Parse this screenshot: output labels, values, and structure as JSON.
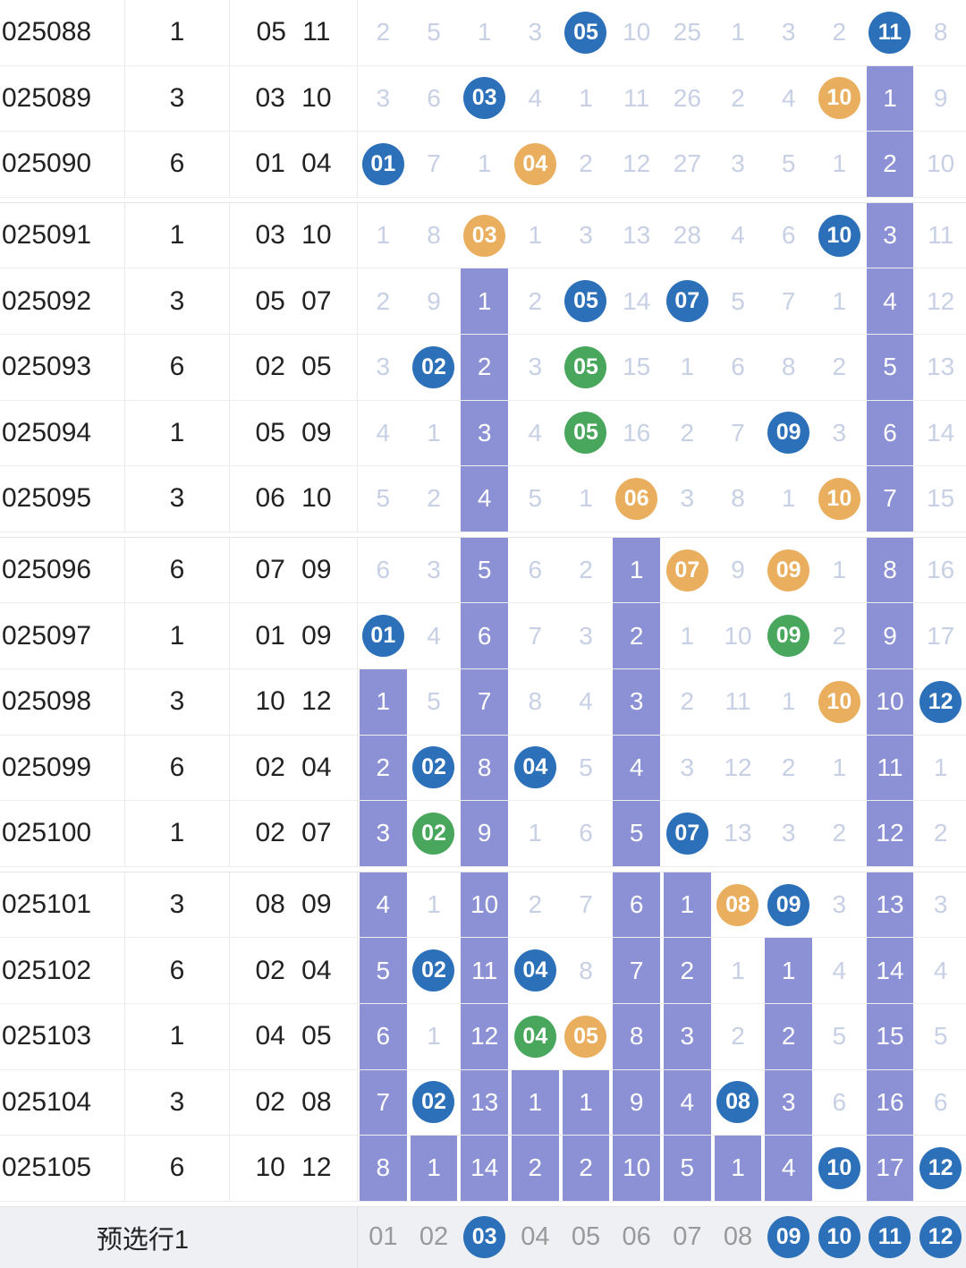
{
  "colors": {
    "blue": "#2b70b8",
    "orange": "#e9af5e",
    "green": "#48a75c",
    "purple": "#8b91d4",
    "plain": "#c7d0e4",
    "footer_text": "#999999",
    "footer_bg": "#eef0f4"
  },
  "footer": {
    "label": "预选行1",
    "cells": [
      {
        "v": "01",
        "t": "plain"
      },
      {
        "v": "02",
        "t": "plain"
      },
      {
        "v": "03",
        "t": "blue"
      },
      {
        "v": "04",
        "t": "plain"
      },
      {
        "v": "05",
        "t": "plain"
      },
      {
        "v": "06",
        "t": "plain"
      },
      {
        "v": "07",
        "t": "plain"
      },
      {
        "v": "08",
        "t": "plain"
      },
      {
        "v": "09",
        "t": "blue"
      },
      {
        "v": "10",
        "t": "blue"
      },
      {
        "v": "11",
        "t": "blue"
      },
      {
        "v": "12",
        "t": "blue"
      }
    ]
  },
  "rows": [
    {
      "period": "025088",
      "group": "1",
      "drawn": "05 11",
      "groupEnd": false,
      "cells": [
        {
          "v": "2",
          "t": "plain"
        },
        {
          "v": "5",
          "t": "plain"
        },
        {
          "v": "1",
          "t": "plain"
        },
        {
          "v": "3",
          "t": "plain"
        },
        {
          "v": "05",
          "t": "blue"
        },
        {
          "v": "10",
          "t": "plain"
        },
        {
          "v": "25",
          "t": "plain"
        },
        {
          "v": "1",
          "t": "plain"
        },
        {
          "v": "3",
          "t": "plain"
        },
        {
          "v": "2",
          "t": "plain"
        },
        {
          "v": "11",
          "t": "blue"
        },
        {
          "v": "8",
          "t": "plain"
        }
      ]
    },
    {
      "period": "025089",
      "group": "3",
      "drawn": "03 10",
      "groupEnd": false,
      "cells": [
        {
          "v": "3",
          "t": "plain"
        },
        {
          "v": "6",
          "t": "plain"
        },
        {
          "v": "03",
          "t": "blue"
        },
        {
          "v": "4",
          "t": "plain"
        },
        {
          "v": "1",
          "t": "plain"
        },
        {
          "v": "11",
          "t": "plain"
        },
        {
          "v": "26",
          "t": "plain"
        },
        {
          "v": "2",
          "t": "plain"
        },
        {
          "v": "4",
          "t": "plain"
        },
        {
          "v": "10",
          "t": "orange"
        },
        {
          "v": "1",
          "t": "purple"
        },
        {
          "v": "9",
          "t": "plain"
        }
      ]
    },
    {
      "period": "025090",
      "group": "6",
      "drawn": "01 04",
      "groupEnd": true,
      "cells": [
        {
          "v": "01",
          "t": "blue"
        },
        {
          "v": "7",
          "t": "plain"
        },
        {
          "v": "1",
          "t": "plain"
        },
        {
          "v": "04",
          "t": "orange"
        },
        {
          "v": "2",
          "t": "plain"
        },
        {
          "v": "12",
          "t": "plain"
        },
        {
          "v": "27",
          "t": "plain"
        },
        {
          "v": "3",
          "t": "plain"
        },
        {
          "v": "5",
          "t": "plain"
        },
        {
          "v": "1",
          "t": "plain"
        },
        {
          "v": "2",
          "t": "purple"
        },
        {
          "v": "10",
          "t": "plain"
        }
      ]
    },
    {
      "period": "025091",
      "group": "1",
      "drawn": "03 10",
      "groupEnd": false,
      "cells": [
        {
          "v": "1",
          "t": "plain"
        },
        {
          "v": "8",
          "t": "plain"
        },
        {
          "v": "03",
          "t": "orange"
        },
        {
          "v": "1",
          "t": "plain"
        },
        {
          "v": "3",
          "t": "plain"
        },
        {
          "v": "13",
          "t": "plain"
        },
        {
          "v": "28",
          "t": "plain"
        },
        {
          "v": "4",
          "t": "plain"
        },
        {
          "v": "6",
          "t": "plain"
        },
        {
          "v": "10",
          "t": "blue"
        },
        {
          "v": "3",
          "t": "purple"
        },
        {
          "v": "11",
          "t": "plain"
        }
      ]
    },
    {
      "period": "025092",
      "group": "3",
      "drawn": "05 07",
      "groupEnd": false,
      "cells": [
        {
          "v": "2",
          "t": "plain"
        },
        {
          "v": "9",
          "t": "plain"
        },
        {
          "v": "1",
          "t": "purple"
        },
        {
          "v": "2",
          "t": "plain"
        },
        {
          "v": "05",
          "t": "blue"
        },
        {
          "v": "14",
          "t": "plain"
        },
        {
          "v": "07",
          "t": "blue"
        },
        {
          "v": "5",
          "t": "plain"
        },
        {
          "v": "7",
          "t": "plain"
        },
        {
          "v": "1",
          "t": "plain"
        },
        {
          "v": "4",
          "t": "purple"
        },
        {
          "v": "12",
          "t": "plain"
        }
      ]
    },
    {
      "period": "025093",
      "group": "6",
      "drawn": "02 05",
      "groupEnd": false,
      "cells": [
        {
          "v": "3",
          "t": "plain"
        },
        {
          "v": "02",
          "t": "blue"
        },
        {
          "v": "2",
          "t": "purple"
        },
        {
          "v": "3",
          "t": "plain"
        },
        {
          "v": "05",
          "t": "green"
        },
        {
          "v": "15",
          "t": "plain"
        },
        {
          "v": "1",
          "t": "plain"
        },
        {
          "v": "6",
          "t": "plain"
        },
        {
          "v": "8",
          "t": "plain"
        },
        {
          "v": "2",
          "t": "plain"
        },
        {
          "v": "5",
          "t": "purple"
        },
        {
          "v": "13",
          "t": "plain"
        }
      ]
    },
    {
      "period": "025094",
      "group": "1",
      "drawn": "05 09",
      "groupEnd": false,
      "cells": [
        {
          "v": "4",
          "t": "plain"
        },
        {
          "v": "1",
          "t": "plain"
        },
        {
          "v": "3",
          "t": "purple"
        },
        {
          "v": "4",
          "t": "plain"
        },
        {
          "v": "05",
          "t": "green"
        },
        {
          "v": "16",
          "t": "plain"
        },
        {
          "v": "2",
          "t": "plain"
        },
        {
          "v": "7",
          "t": "plain"
        },
        {
          "v": "09",
          "t": "blue"
        },
        {
          "v": "3",
          "t": "plain"
        },
        {
          "v": "6",
          "t": "purple"
        },
        {
          "v": "14",
          "t": "plain"
        }
      ]
    },
    {
      "period": "025095",
      "group": "3",
      "drawn": "06 10",
      "groupEnd": true,
      "cells": [
        {
          "v": "5",
          "t": "plain"
        },
        {
          "v": "2",
          "t": "plain"
        },
        {
          "v": "4",
          "t": "purple"
        },
        {
          "v": "5",
          "t": "plain"
        },
        {
          "v": "1",
          "t": "plain"
        },
        {
          "v": "06",
          "t": "orange"
        },
        {
          "v": "3",
          "t": "plain"
        },
        {
          "v": "8",
          "t": "plain"
        },
        {
          "v": "1",
          "t": "plain"
        },
        {
          "v": "10",
          "t": "orange"
        },
        {
          "v": "7",
          "t": "purple"
        },
        {
          "v": "15",
          "t": "plain"
        }
      ]
    },
    {
      "period": "025096",
      "group": "6",
      "drawn": "07 09",
      "groupEnd": false,
      "cells": [
        {
          "v": "6",
          "t": "plain"
        },
        {
          "v": "3",
          "t": "plain"
        },
        {
          "v": "5",
          "t": "purple"
        },
        {
          "v": "6",
          "t": "plain"
        },
        {
          "v": "2",
          "t": "plain"
        },
        {
          "v": "1",
          "t": "purple"
        },
        {
          "v": "07",
          "t": "orange"
        },
        {
          "v": "9",
          "t": "plain"
        },
        {
          "v": "09",
          "t": "orange"
        },
        {
          "v": "1",
          "t": "plain"
        },
        {
          "v": "8",
          "t": "purple"
        },
        {
          "v": "16",
          "t": "plain"
        }
      ]
    },
    {
      "period": "025097",
      "group": "1",
      "drawn": "01 09",
      "groupEnd": false,
      "cells": [
        {
          "v": "01",
          "t": "blue"
        },
        {
          "v": "4",
          "t": "plain"
        },
        {
          "v": "6",
          "t": "purple"
        },
        {
          "v": "7",
          "t": "plain"
        },
        {
          "v": "3",
          "t": "plain"
        },
        {
          "v": "2",
          "t": "purple"
        },
        {
          "v": "1",
          "t": "plain"
        },
        {
          "v": "10",
          "t": "plain"
        },
        {
          "v": "09",
          "t": "green"
        },
        {
          "v": "2",
          "t": "plain"
        },
        {
          "v": "9",
          "t": "purple"
        },
        {
          "v": "17",
          "t": "plain"
        }
      ]
    },
    {
      "period": "025098",
      "group": "3",
      "drawn": "10 12",
      "groupEnd": false,
      "cells": [
        {
          "v": "1",
          "t": "purple"
        },
        {
          "v": "5",
          "t": "plain"
        },
        {
          "v": "7",
          "t": "purple"
        },
        {
          "v": "8",
          "t": "plain"
        },
        {
          "v": "4",
          "t": "plain"
        },
        {
          "v": "3",
          "t": "purple"
        },
        {
          "v": "2",
          "t": "plain"
        },
        {
          "v": "11",
          "t": "plain"
        },
        {
          "v": "1",
          "t": "plain"
        },
        {
          "v": "10",
          "t": "orange"
        },
        {
          "v": "10",
          "t": "purple"
        },
        {
          "v": "12",
          "t": "blue"
        }
      ]
    },
    {
      "period": "025099",
      "group": "6",
      "drawn": "02 04",
      "groupEnd": false,
      "cells": [
        {
          "v": "2",
          "t": "purple"
        },
        {
          "v": "02",
          "t": "blue"
        },
        {
          "v": "8",
          "t": "purple"
        },
        {
          "v": "04",
          "t": "blue"
        },
        {
          "v": "5",
          "t": "plain"
        },
        {
          "v": "4",
          "t": "purple"
        },
        {
          "v": "3",
          "t": "plain"
        },
        {
          "v": "12",
          "t": "plain"
        },
        {
          "v": "2",
          "t": "plain"
        },
        {
          "v": "1",
          "t": "plain"
        },
        {
          "v": "11",
          "t": "purple"
        },
        {
          "v": "1",
          "t": "plain"
        }
      ]
    },
    {
      "period": "025100",
      "group": "1",
      "drawn": "02 07",
      "groupEnd": true,
      "cells": [
        {
          "v": "3",
          "t": "purple"
        },
        {
          "v": "02",
          "t": "green"
        },
        {
          "v": "9",
          "t": "purple"
        },
        {
          "v": "1",
          "t": "plain"
        },
        {
          "v": "6",
          "t": "plain"
        },
        {
          "v": "5",
          "t": "purple"
        },
        {
          "v": "07",
          "t": "blue"
        },
        {
          "v": "13",
          "t": "plain"
        },
        {
          "v": "3",
          "t": "plain"
        },
        {
          "v": "2",
          "t": "plain"
        },
        {
          "v": "12",
          "t": "purple"
        },
        {
          "v": "2",
          "t": "plain"
        }
      ]
    },
    {
      "period": "025101",
      "group": "3",
      "drawn": "08 09",
      "groupEnd": false,
      "cells": [
        {
          "v": "4",
          "t": "purple"
        },
        {
          "v": "1",
          "t": "plain"
        },
        {
          "v": "10",
          "t": "purple"
        },
        {
          "v": "2",
          "t": "plain"
        },
        {
          "v": "7",
          "t": "plain"
        },
        {
          "v": "6",
          "t": "purple"
        },
        {
          "v": "1",
          "t": "purple"
        },
        {
          "v": "08",
          "t": "orange"
        },
        {
          "v": "09",
          "t": "blue"
        },
        {
          "v": "3",
          "t": "plain"
        },
        {
          "v": "13",
          "t": "purple"
        },
        {
          "v": "3",
          "t": "plain"
        }
      ]
    },
    {
      "period": "025102",
      "group": "6",
      "drawn": "02 04",
      "groupEnd": false,
      "cells": [
        {
          "v": "5",
          "t": "purple"
        },
        {
          "v": "02",
          "t": "blue"
        },
        {
          "v": "11",
          "t": "purple"
        },
        {
          "v": "04",
          "t": "blue"
        },
        {
          "v": "8",
          "t": "plain"
        },
        {
          "v": "7",
          "t": "purple"
        },
        {
          "v": "2",
          "t": "purple"
        },
        {
          "v": "1",
          "t": "plain"
        },
        {
          "v": "1",
          "t": "purple"
        },
        {
          "v": "4",
          "t": "plain"
        },
        {
          "v": "14",
          "t": "purple"
        },
        {
          "v": "4",
          "t": "plain"
        }
      ]
    },
    {
      "period": "025103",
      "group": "1",
      "drawn": "04 05",
      "groupEnd": false,
      "cells": [
        {
          "v": "6",
          "t": "purple"
        },
        {
          "v": "1",
          "t": "plain"
        },
        {
          "v": "12",
          "t": "purple"
        },
        {
          "v": "04",
          "t": "green"
        },
        {
          "v": "05",
          "t": "orange"
        },
        {
          "v": "8",
          "t": "purple"
        },
        {
          "v": "3",
          "t": "purple"
        },
        {
          "v": "2",
          "t": "plain"
        },
        {
          "v": "2",
          "t": "purple"
        },
        {
          "v": "5",
          "t": "plain"
        },
        {
          "v": "15",
          "t": "purple"
        },
        {
          "v": "5",
          "t": "plain"
        }
      ]
    },
    {
      "period": "025104",
      "group": "3",
      "drawn": "02 08",
      "groupEnd": false,
      "cells": [
        {
          "v": "7",
          "t": "purple"
        },
        {
          "v": "02",
          "t": "blue"
        },
        {
          "v": "13",
          "t": "purple"
        },
        {
          "v": "1",
          "t": "purple"
        },
        {
          "v": "1",
          "t": "purple"
        },
        {
          "v": "9",
          "t": "purple"
        },
        {
          "v": "4",
          "t": "purple"
        },
        {
          "v": "08",
          "t": "blue"
        },
        {
          "v": "3",
          "t": "purple"
        },
        {
          "v": "6",
          "t": "plain"
        },
        {
          "v": "16",
          "t": "purple"
        },
        {
          "v": "6",
          "t": "plain"
        }
      ]
    },
    {
      "period": "025105",
      "group": "6",
      "drawn": "10 12",
      "groupEnd": true,
      "cells": [
        {
          "v": "8",
          "t": "purple"
        },
        {
          "v": "1",
          "t": "purple"
        },
        {
          "v": "14",
          "t": "purple"
        },
        {
          "v": "2",
          "t": "purple"
        },
        {
          "v": "2",
          "t": "purple"
        },
        {
          "v": "10",
          "t": "purple"
        },
        {
          "v": "5",
          "t": "purple"
        },
        {
          "v": "1",
          "t": "purple"
        },
        {
          "v": "4",
          "t": "purple"
        },
        {
          "v": "10",
          "t": "blue"
        },
        {
          "v": "17",
          "t": "purple"
        },
        {
          "v": "12",
          "t": "blue"
        }
      ]
    }
  ]
}
